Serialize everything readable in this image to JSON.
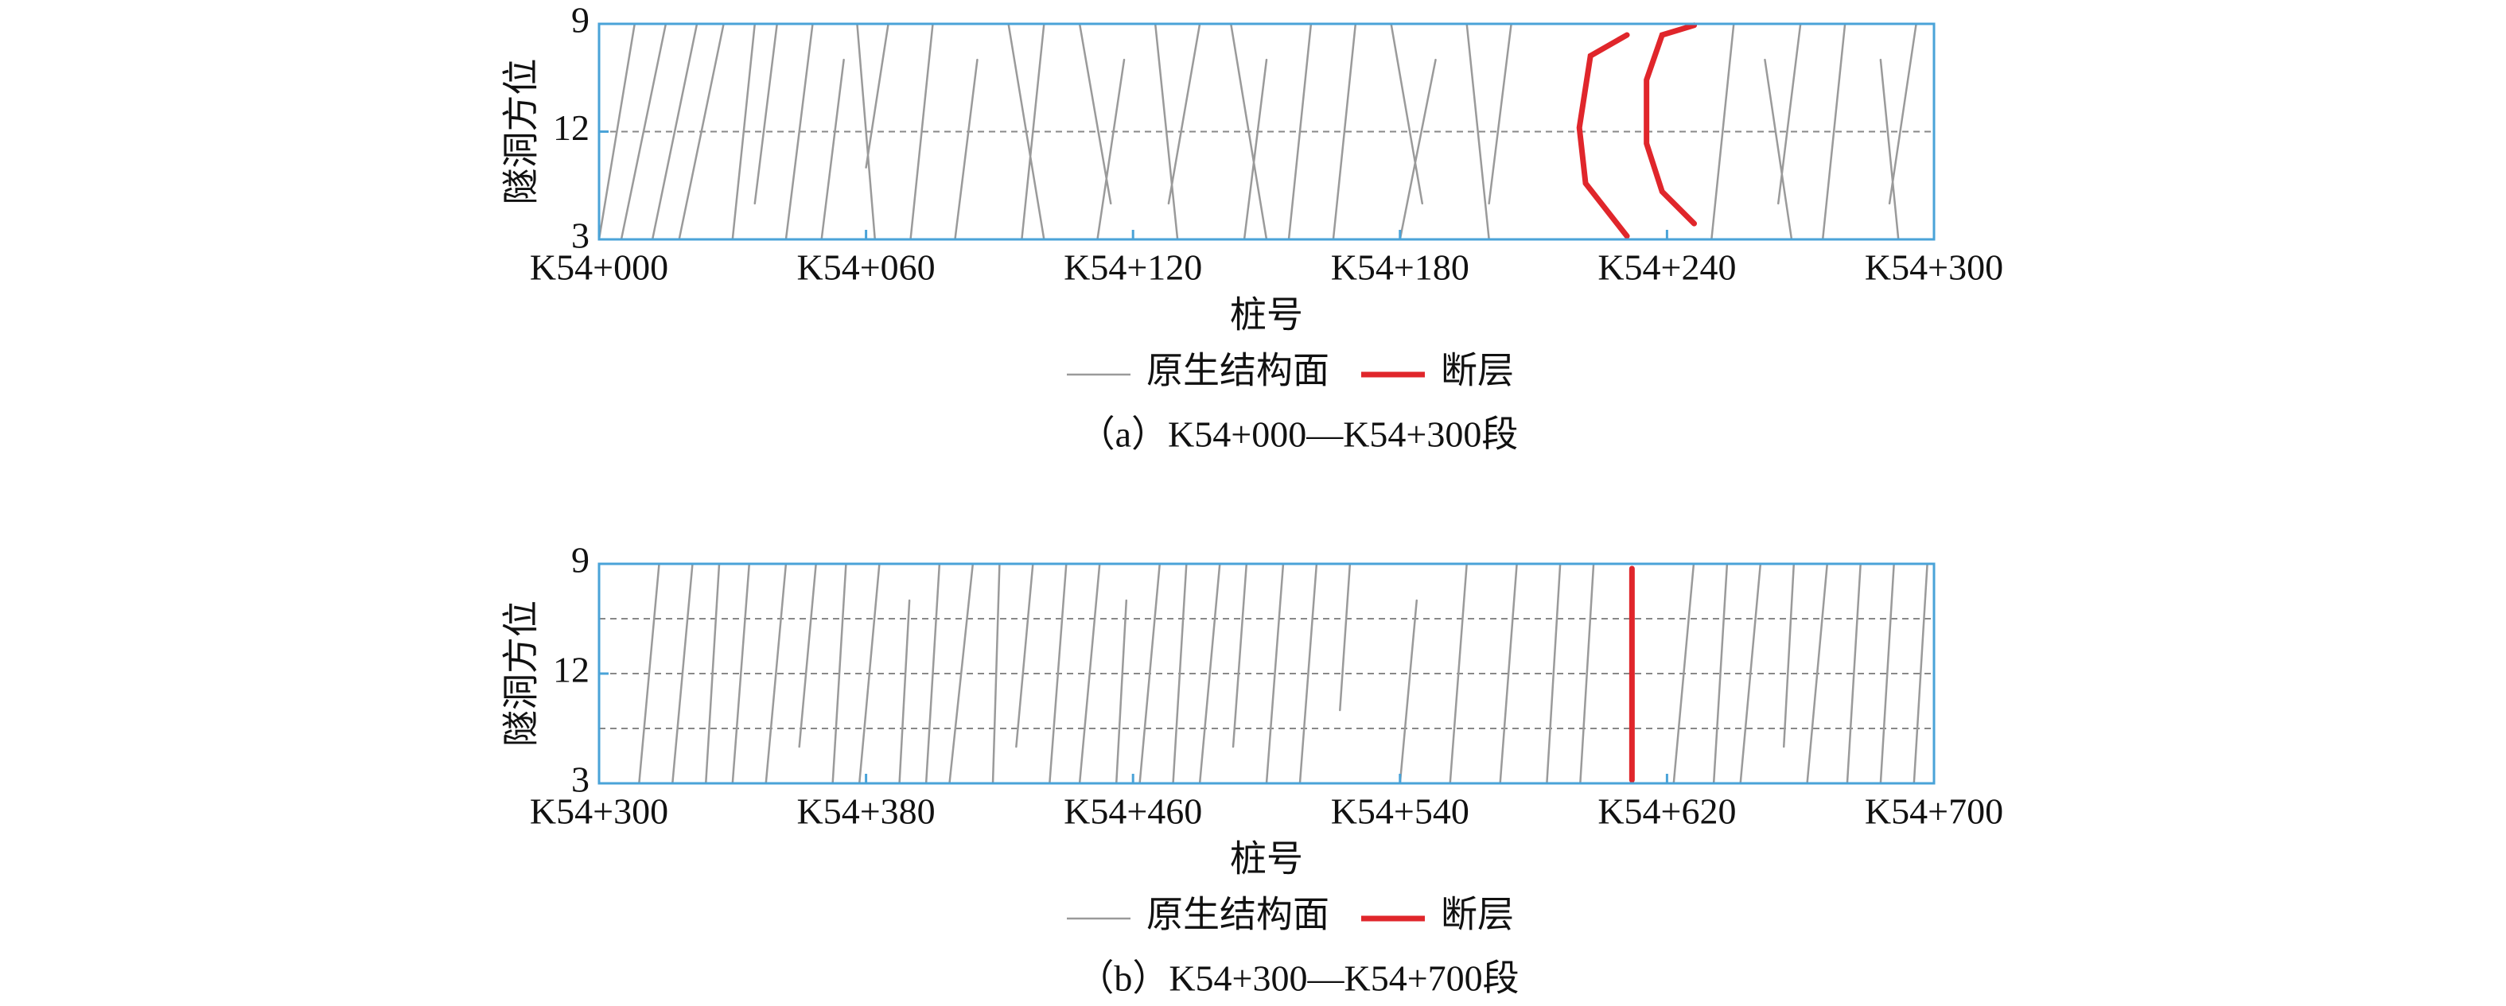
{
  "chart_data": [
    {
      "type": "line",
      "caption": "（a）K54+000—K54+300段",
      "x_label": "桩号",
      "y_label": "隧洞方位",
      "xlim": [
        0,
        300
      ],
      "ylim": [
        9,
        15
      ],
      "xticks": [
        {
          "value": 0,
          "label": "K54+000"
        },
        {
          "value": 60,
          "label": "K54+060"
        },
        {
          "value": 120,
          "label": "K54+120"
        },
        {
          "value": 180,
          "label": "K54+180"
        },
        {
          "value": 240,
          "label": "K54+240"
        },
        {
          "value": 300,
          "label": "K54+300"
        }
      ],
      "yticks": [
        9,
        12,
        {
          "value": 15,
          "label": "3"
        }
      ],
      "dashed_lines": [
        12
      ],
      "series": [
        {
          "name": "原生结构面",
          "color": "#9a9a9a",
          "x": [
            8,
            0,
            null,
            15,
            5,
            null,
            22,
            12,
            null,
            28,
            18,
            null,
            35,
            30,
            null,
            40,
            35,
            null,
            48,
            42,
            null,
            55,
            50,
            null,
            58,
            62,
            null,
            65,
            60,
            null,
            75,
            70,
            null,
            85,
            80,
            null,
            92,
            100,
            null,
            100,
            95,
            null,
            108,
            115,
            null,
            118,
            112,
            null,
            125,
            130,
            null,
            135,
            128,
            null,
            142,
            150,
            null,
            150,
            145,
            null,
            160,
            155,
            null,
            170,
            165,
            null,
            178,
            185,
            null,
            188,
            180,
            null,
            195,
            200,
            null,
            205,
            200,
            null,
            255,
            250,
            null,
            262,
            268,
            null,
            270,
            265,
            null,
            280,
            275,
            null,
            288,
            292,
            null,
            296,
            290
          ],
          "values": [
            9,
            15,
            null,
            9,
            15,
            null,
            9,
            15,
            null,
            9,
            15,
            null,
            9,
            15,
            null,
            9,
            14,
            null,
            9,
            15,
            null,
            10,
            15,
            null,
            9,
            15,
            null,
            9,
            13,
            null,
            9,
            15,
            null,
            10,
            15,
            null,
            9,
            15,
            null,
            9,
            15,
            null,
            9,
            14,
            null,
            10,
            15,
            null,
            9,
            15,
            null,
            9,
            14,
            null,
            9,
            15,
            null,
            10,
            15,
            null,
            9,
            15,
            null,
            9,
            15,
            null,
            9,
            14,
            null,
            10,
            15,
            null,
            9,
            15,
            null,
            9,
            14,
            null,
            9,
            15,
            null,
            10,
            15,
            null,
            9,
            14,
            null,
            9,
            15,
            null,
            10,
            15,
            null,
            9,
            14
          ]
        },
        {
          "name": "断层",
          "color": "#e0262b",
          "x": [
            231,
            222.8,
            220.3,
            221.7,
            231,
            null,
            246.1,
            238.9,
            235.4,
            235.4,
            238.9,
            246.1
          ],
          "values": [
            9.31,
            9.89,
            11.89,
            13.44,
            14.91,
            null,
            9.04,
            9.31,
            10.56,
            12.33,
            13.67,
            14.56
          ]
        }
      ]
    },
    {
      "type": "line",
      "caption": "（b）K54+300—K54+700段",
      "x_label": "桩号",
      "y_label": "隧洞方位",
      "xlim": [
        300,
        700
      ],
      "ylim": [
        9,
        15
      ],
      "xticks": [
        {
          "value": 300,
          "label": "K54+300"
        },
        {
          "value": 380,
          "label": "K54+380"
        },
        {
          "value": 460,
          "label": "K54+460"
        },
        {
          "value": 540,
          "label": "K54+540"
        },
        {
          "value": 620,
          "label": "K54+620"
        },
        {
          "value": 700,
          "label": "K54+700"
        }
      ],
      "yticks": [
        9,
        12,
        {
          "value": 15,
          "label": "3"
        }
      ],
      "dashed_lines": [
        10.5,
        12,
        13.5
      ],
      "series": [
        {
          "name": "原生结构面",
          "color": "#9a9a9a",
          "x": [
            318,
            312,
            null,
            328,
            322,
            null,
            336,
            332,
            null,
            345,
            340,
            null,
            356,
            350,
            null,
            365,
            360,
            null,
            374,
            370,
            null,
            384,
            378,
            null,
            393,
            390,
            null,
            402,
            398,
            null,
            412,
            405,
            null,
            420,
            418,
            null,
            430,
            425,
            null,
            440,
            435,
            null,
            450,
            444,
            null,
            458,
            455,
            null,
            468,
            462,
            null,
            476,
            472,
            null,
            486,
            480,
            null,
            494,
            490,
            null,
            505,
            500,
            null,
            515,
            510,
            null,
            525,
            522,
            null,
            545,
            540,
            null,
            560,
            555,
            null,
            575,
            570,
            null,
            588,
            584,
            null,
            598,
            594,
            null,
            628,
            622,
            null,
            638,
            634,
            null,
            648,
            642,
            null,
            658,
            655,
            null,
            668,
            662,
            null,
            678,
            674,
            null,
            688,
            684,
            null,
            698,
            694
          ],
          "values": [
            9,
            15,
            null,
            9,
            15,
            null,
            9,
            15,
            null,
            9,
            15,
            null,
            9,
            15,
            null,
            9,
            14,
            null,
            9,
            15,
            null,
            9,
            15,
            null,
            10,
            15,
            null,
            9,
            15,
            null,
            9,
            15,
            null,
            9,
            15,
            null,
            9,
            14,
            null,
            9,
            15,
            null,
            9,
            15,
            null,
            10,
            15,
            null,
            9,
            15,
            null,
            9,
            15,
            null,
            9,
            15,
            null,
            9,
            14,
            null,
            9,
            15,
            null,
            9,
            15,
            null,
            9,
            13,
            null,
            10,
            15,
            null,
            9,
            15,
            null,
            9,
            15,
            null,
            9,
            15,
            null,
            9,
            15,
            null,
            9,
            15,
            null,
            9,
            15,
            null,
            9,
            15,
            null,
            9,
            14,
            null,
            9,
            15,
            null,
            9,
            15,
            null,
            9,
            15,
            null,
            9,
            15
          ]
        },
        {
          "name": "断层",
          "color": "#e0262b",
          "x": [
            609.5,
            609.5
          ],
          "values": [
            9.13,
            14.91
          ]
        }
      ]
    }
  ]
}
